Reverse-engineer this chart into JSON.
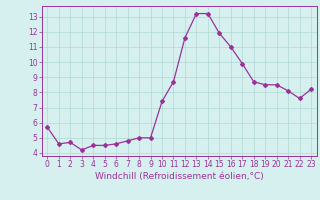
{
  "x": [
    0,
    1,
    2,
    3,
    4,
    5,
    6,
    7,
    8,
    9,
    10,
    11,
    12,
    13,
    14,
    15,
    16,
    17,
    18,
    19,
    20,
    21,
    22,
    23
  ],
  "y": [
    5.7,
    4.6,
    4.7,
    4.2,
    4.5,
    4.5,
    4.6,
    4.8,
    5.0,
    5.0,
    7.4,
    8.7,
    11.6,
    13.2,
    13.2,
    11.9,
    11.0,
    9.9,
    8.7,
    8.5,
    8.5,
    8.1,
    7.6,
    8.2
  ],
  "line_color": "#993399",
  "marker": "D",
  "markersize": 2.0,
  "linewidth": 0.9,
  "xlabel": "Windchill (Refroidissement éolien,°C)",
  "xlabel_fontsize": 6.5,
  "xtick_labels": [
    "0",
    "1",
    "2",
    "3",
    "4",
    "5",
    "6",
    "7",
    "8",
    "9",
    "10",
    "11",
    "12",
    "13",
    "14",
    "15",
    "16",
    "17",
    "18",
    "19",
    "20",
    "21",
    "22",
    "23"
  ],
  "ytick_values": [
    4,
    5,
    6,
    7,
    8,
    9,
    10,
    11,
    12,
    13
  ],
  "ylim": [
    3.8,
    13.7
  ],
  "xlim": [
    -0.5,
    23.5
  ],
  "background_color": "#d5f0ee",
  "grid_color": "#b0d8d4",
  "tick_color": "#993399",
  "label_color": "#993399",
  "spine_color": "#993399",
  "tick_fontsize": 5.5
}
